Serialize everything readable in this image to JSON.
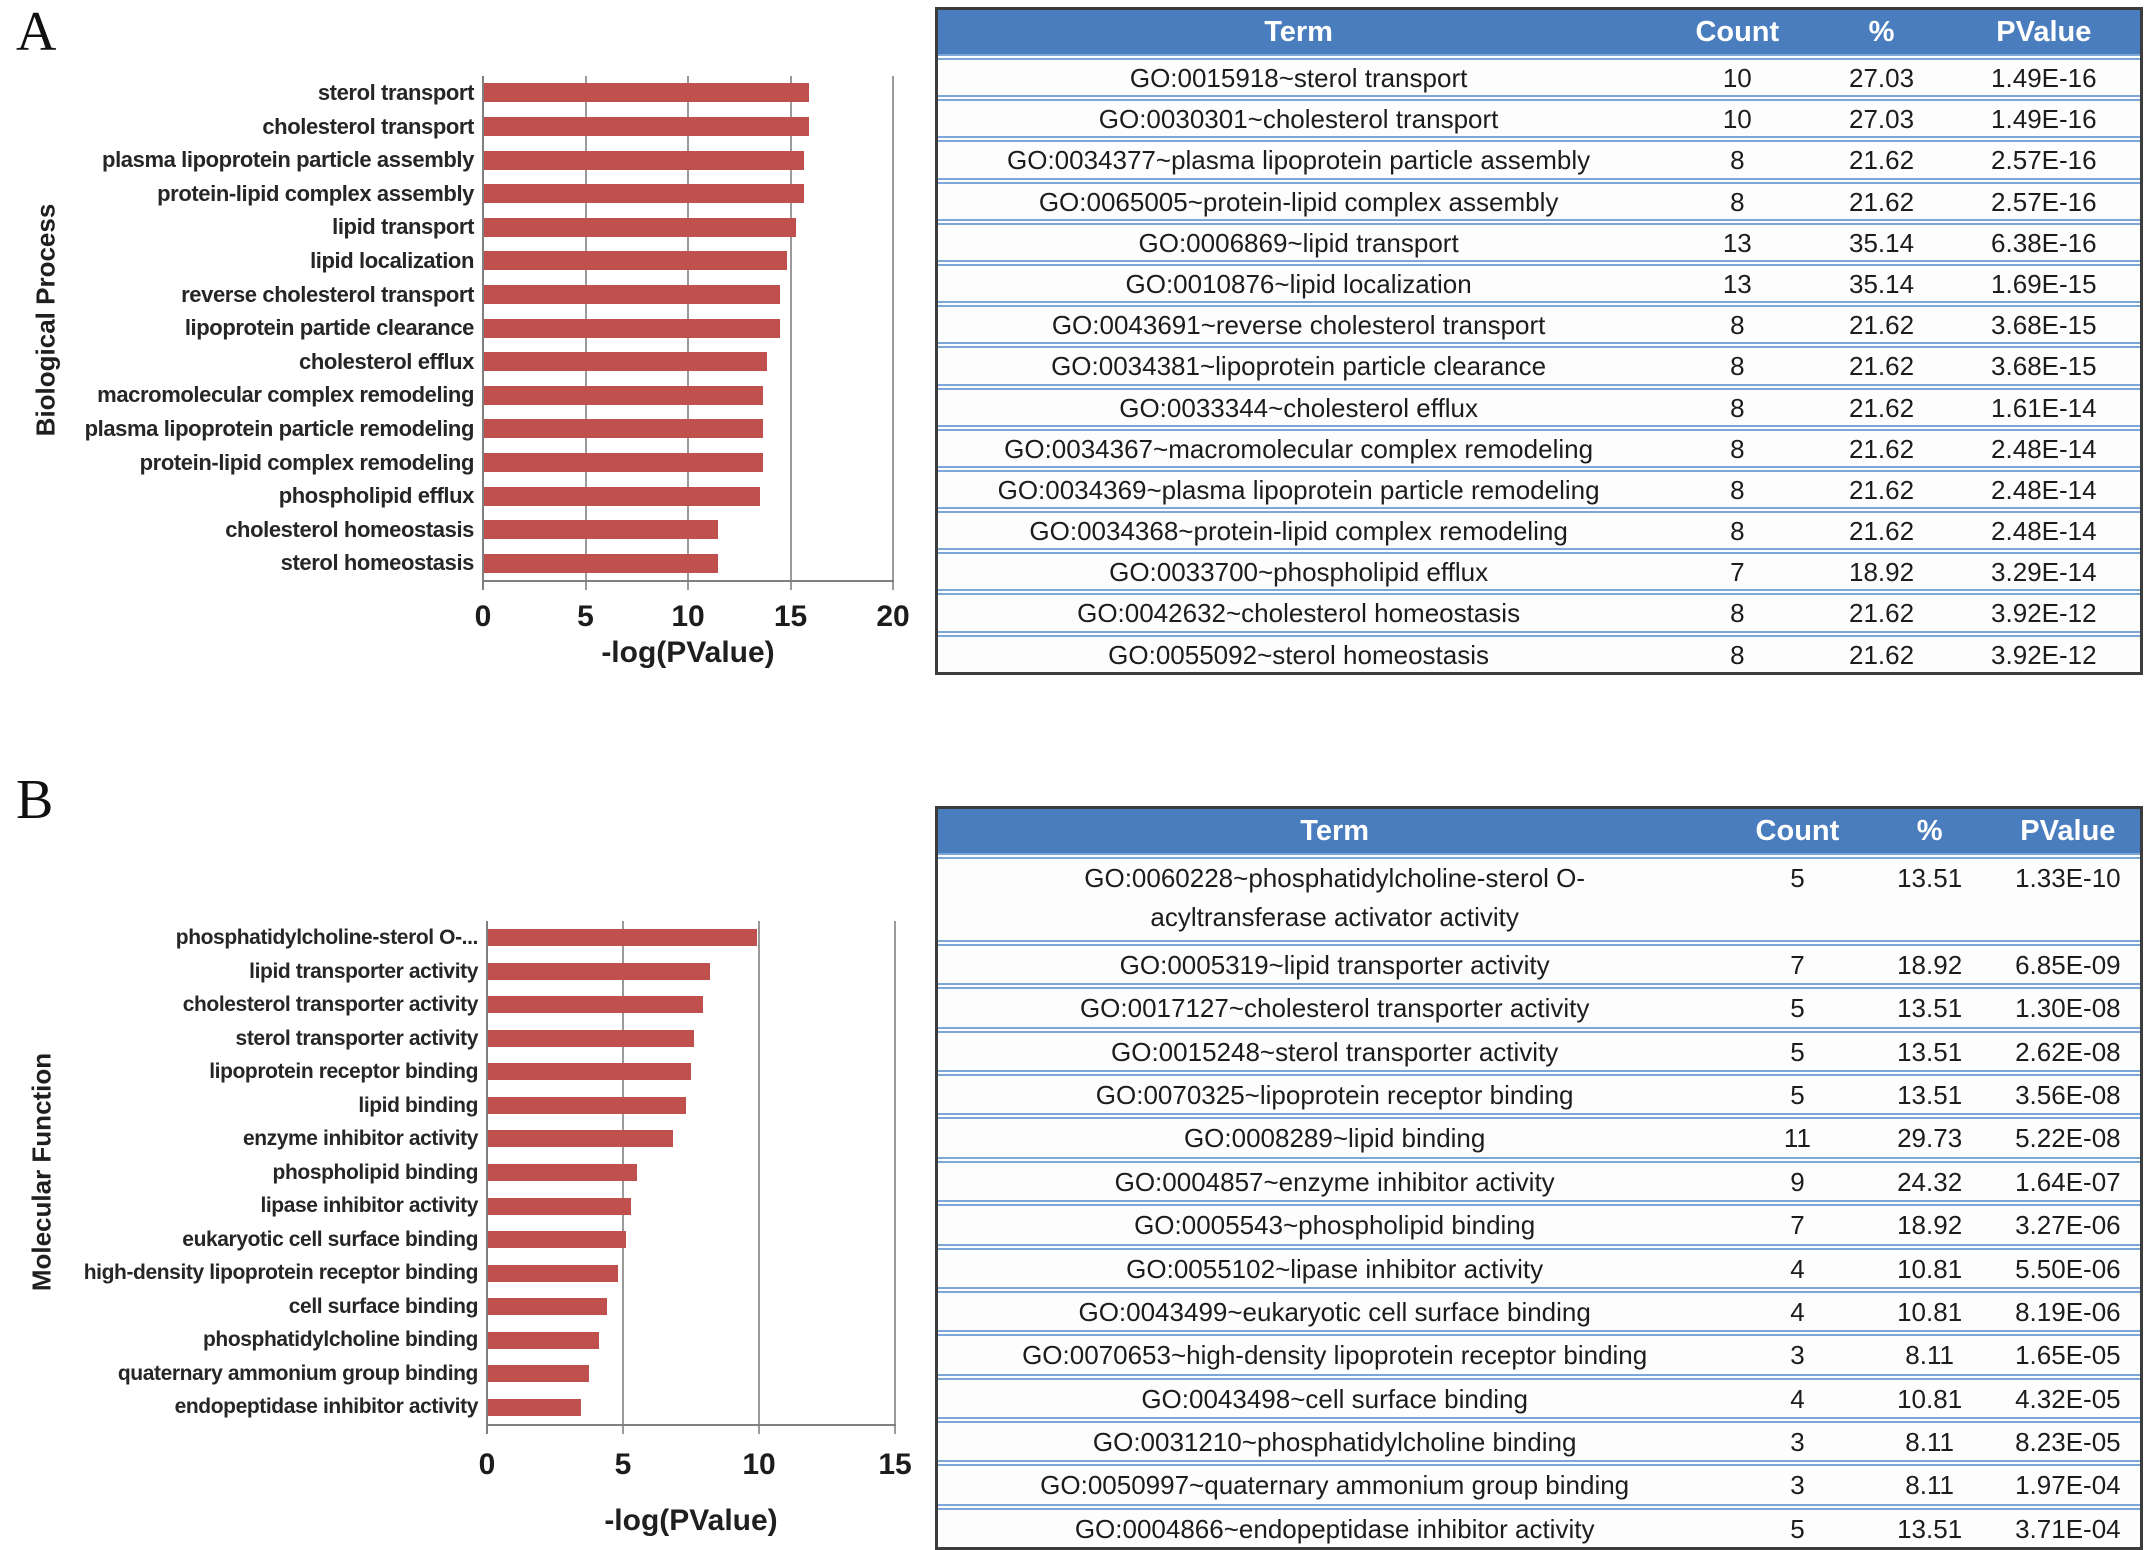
{
  "figure": {
    "panels": [
      {
        "label": "A",
        "table": {
          "headers": [
            "Term",
            "Count",
            "%",
            "PValue"
          ],
          "rows": [
            [
              "GO:0015918~sterol transport",
              "10",
              "27.03",
              "1.49E-16"
            ],
            [
              "GO:0030301~cholesterol transport",
              "10",
              "27.03",
              "1.49E-16"
            ],
            [
              "GO:0034377~plasma lipoprotein particle assembly",
              "8",
              "21.62",
              "2.57E-16"
            ],
            [
              "GO:0065005~protein-lipid complex assembly",
              "8",
              "21.62",
              "2.57E-16"
            ],
            [
              "GO:0006869~lipid transport",
              "13",
              "35.14",
              "6.38E-16"
            ],
            [
              "GO:0010876~lipid localization",
              "13",
              "35.14",
              "1.69E-15"
            ],
            [
              "GO:0043691~reverse cholesterol transport",
              "8",
              "21.62",
              "3.68E-15"
            ],
            [
              "GO:0034381~lipoprotein particle clearance",
              "8",
              "21.62",
              "3.68E-15"
            ],
            [
              "GO:0033344~cholesterol efflux",
              "8",
              "21.62",
              "1.61E-14"
            ],
            [
              "GO:0034367~macromolecular complex remodeling",
              "8",
              "21.62",
              "2.48E-14"
            ],
            [
              "GO:0034369~plasma lipoprotein particle remodeling",
              "8",
              "21.62",
              "2.48E-14"
            ],
            [
              "GO:0034368~protein-lipid complex remodeling",
              "8",
              "21.62",
              "2.48E-14"
            ],
            [
              "GO:0033700~phospholipid efflux",
              "7",
              "18.92",
              "3.29E-14"
            ],
            [
              "GO:0042632~cholesterol homeostasis",
              "8",
              "21.62",
              "3.92E-12"
            ],
            [
              "GO:0055092~sterol homeostasis",
              "8",
              "21.62",
              "3.92E-12"
            ]
          ]
        }
      },
      {
        "label": "B",
        "table": {
          "headers": [
            "Term",
            "Count",
            "%",
            "PValue"
          ],
          "rows": [
            [
              "GO:0060228~phosphatidylcholine-sterol O-\nacyltransferase activator activity",
              "5",
              "13.51",
              "1.33E-10"
            ],
            [
              "GO:0005319~lipid transporter activity",
              "7",
              "18.92",
              "6.85E-09"
            ],
            [
              "GO:0017127~cholesterol transporter activity",
              "5",
              "13.51",
              "1.30E-08"
            ],
            [
              "GO:0015248~sterol transporter activity",
              "5",
              "13.51",
              "2.62E-08"
            ],
            [
              "GO:0070325~lipoprotein receptor binding",
              "5",
              "13.51",
              "3.56E-08"
            ],
            [
              "GO:0008289~lipid binding",
              "11",
              "29.73",
              "5.22E-08"
            ],
            [
              "GO:0004857~enzyme inhibitor activity",
              "9",
              "24.32",
              "1.64E-07"
            ],
            [
              "GO:0005543~phospholipid binding",
              "7",
              "18.92",
              "3.27E-06"
            ],
            [
              "GO:0055102~lipase inhibitor activity",
              "4",
              "10.81",
              "5.50E-06"
            ],
            [
              "GO:0043499~eukaryotic cell surface binding",
              "4",
              "10.81",
              "8.19E-06"
            ],
            [
              "GO:0070653~high-density lipoprotein receptor binding",
              "3",
              "8.11",
              "1.65E-05"
            ],
            [
              "GO:0043498~cell surface binding",
              "4",
              "10.81",
              "4.32E-05"
            ],
            [
              "GO:0031210~phosphatidylcholine binding",
              "3",
              "8.11",
              "8.23E-05"
            ],
            [
              "GO:0050997~quaternary ammonium group binding",
              "3",
              "8.11",
              "1.97E-04"
            ],
            [
              "GO:0004866~endopeptidase inhibitor activity",
              "5",
              "13.51",
              "3.71E-04"
            ]
          ]
        }
      }
    ]
  },
  "chart_data": [
    {
      "type": "bar",
      "orientation": "horizontal",
      "title": "",
      "xlabel": "-log(PValue)",
      "ylabel": "Biological Process",
      "xlim": [
        0,
        20
      ],
      "xticks": [
        0,
        5,
        10,
        15,
        20
      ],
      "grid": true,
      "legend": "none",
      "bar_color": "#c0504d",
      "categories": [
        "sterol transport",
        "cholesterol transport",
        "plasma lipoprotein particle assembly",
        "protein-lipid complex assembly",
        "lipid transport",
        "lipid localization",
        "reverse cholesterol transport",
        "lipoprotein partide clearance",
        "cholesterol efflux",
        "macromolecular complex remodeling",
        "plasma lipoprotein particle remodeling",
        "protein-lipid complex remodeling",
        "phospholipid efflux",
        "cholesterol homeostasis",
        "sterol homeostasis"
      ],
      "values": [
        15.83,
        15.83,
        15.59,
        15.59,
        15.2,
        14.77,
        14.43,
        14.43,
        13.79,
        13.61,
        13.61,
        13.61,
        13.48,
        11.41,
        11.41
      ]
    },
    {
      "type": "bar",
      "orientation": "horizontal",
      "title": "",
      "xlabel": "-log(PValue)",
      "ylabel": "Molecular Function",
      "xlim": [
        0,
        15
      ],
      "xticks": [
        0,
        5,
        10,
        15
      ],
      "grid": true,
      "legend": "none",
      "bar_color": "#c0504d",
      "categories": [
        "phosphatidylcholine-sterol O-...",
        "lipid transporter activity",
        "cholesterol transporter activity",
        "sterol transporter activity",
        "lipoprotein receptor binding",
        "lipid binding",
        "enzyme inhibitor activity",
        "phospholipid binding",
        "lipase inhibitor activity",
        "eukaryotic cell surface binding",
        "high-density lipoprotein receptor binding",
        "cell surface binding",
        "phosphatidylcholine binding",
        "quaternary ammonium group binding",
        "endopeptidase inhibitor activity"
      ],
      "values": [
        9.88,
        8.16,
        7.89,
        7.58,
        7.45,
        7.28,
        6.79,
        5.49,
        5.26,
        5.09,
        4.78,
        4.36,
        4.09,
        3.71,
        3.43
      ]
    }
  ],
  "colors": {
    "bar": "#c0504d",
    "table_header_bg": "#4a7dbd",
    "table_header_text": "#ffffff",
    "row_separator": "#7da7d8",
    "table_border": "#3c3c3c",
    "gridline": "#9a9a9a",
    "axis": "#7f7f7f",
    "text": "#1c1c1c"
  }
}
